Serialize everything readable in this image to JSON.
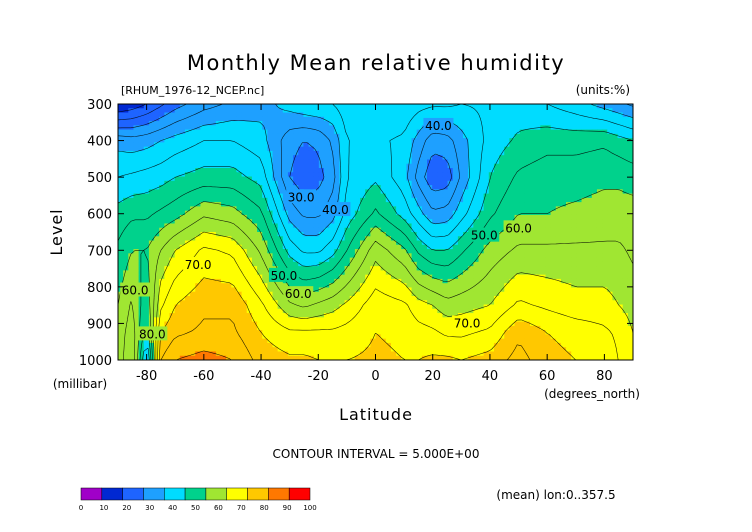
{
  "chart_data": {
    "type": "heatmap",
    "title": "Monthly Mean relative humidity",
    "subtitle_left": "[RHUM_1976-12_NCEP.nc]",
    "units": "(units:%)",
    "xlabel": "Latitude",
    "ylabel": "Level",
    "x_unit_label": "(degrees_north)",
    "y_unit_label": "(millibar)",
    "xlim": [
      -90,
      90
    ],
    "ylim": [
      1000,
      300
    ],
    "x_ticks": [
      -80,
      -60,
      -40,
      -20,
      0,
      20,
      40,
      60,
      80
    ],
    "x_tick_labels": [
      "-80",
      "-60",
      "-40",
      "-20",
      "0",
      "20",
      "40",
      "60",
      "80"
    ],
    "y_ticks": [
      300,
      400,
      500,
      600,
      700,
      800,
      900,
      1000
    ],
    "y_tick_labels": [
      "300",
      "400",
      "500",
      "600",
      "700",
      "800",
      "900",
      "1000"
    ],
    "contour_interval_text": "CONTOUR INTERVAL = 5.000E+00",
    "footer_note": "(mean) lon:0..357.5",
    "contour_labels": [
      {
        "text": "40.0",
        "lat": 22,
        "level": 360
      },
      {
        "text": "30.0",
        "lat": -26,
        "level": 555
      },
      {
        "text": "40.0",
        "lat": -14,
        "level": 590
      },
      {
        "text": "50.0",
        "lat": 38,
        "level": 660
      },
      {
        "text": "60.0",
        "lat": 50,
        "level": 640
      },
      {
        "text": "70.0",
        "lat": -62,
        "level": 740
      },
      {
        "text": "60.0",
        "lat": -84,
        "level": 810
      },
      {
        "text": "50.0",
        "lat": -32,
        "level": 770
      },
      {
        "text": "60.0",
        "lat": -27,
        "level": 820
      },
      {
        "text": "80.0",
        "lat": -78,
        "level": 930
      },
      {
        "text": "70.0",
        "lat": 32,
        "level": 900
      }
    ],
    "colorbar": {
      "levels": [
        0,
        10,
        20,
        30,
        40,
        50,
        60,
        70,
        80,
        90,
        100
      ],
      "colors": [
        "#a000c8",
        "#0028d2",
        "#1e64ff",
        "#1ea0ff",
        "#00dcff",
        "#00d28c",
        "#a0e632",
        "#ffff00",
        "#ffc800",
        "#ff7800",
        "#ff0000"
      ]
    },
    "lat": [
      -90,
      -85,
      -80,
      -75,
      -70,
      -60,
      -50,
      -40,
      -30,
      -25,
      -20,
      -15,
      -10,
      0,
      10,
      15,
      20,
      25,
      30,
      40,
      50,
      60,
      70,
      80,
      85,
      90
    ],
    "levels": [
      1000,
      925,
      850,
      700,
      600,
      500,
      400,
      300
    ],
    "values": [
      [
        62,
        70,
        42,
        85,
        90,
        92,
        90,
        83,
        81,
        81,
        80,
        80,
        80,
        81,
        80,
        80,
        81,
        81,
        80,
        82,
        87,
        82,
        80,
        78,
        75,
        70
      ],
      [
        62,
        68,
        52,
        80,
        84,
        86,
        86,
        80,
        76,
        76,
        76,
        76,
        77,
        80,
        79,
        77,
        76,
        74,
        74,
        76,
        84,
        80,
        78,
        76,
        74,
        70
      ],
      [
        60,
        66,
        56,
        74,
        80,
        84,
        84,
        76,
        66,
        64,
        66,
        68,
        71,
        78,
        76,
        72,
        70,
        67,
        68,
        70,
        76,
        74,
        72,
        72,
        70,
        68
      ],
      [
        56,
        60,
        60,
        65,
        70,
        76,
        74,
        64,
        48,
        44,
        44,
        48,
        55,
        68,
        61,
        54,
        50,
        50,
        54,
        62,
        66,
        66,
        66,
        66,
        66,
        64
      ],
      [
        52,
        54,
        54,
        56,
        58,
        64,
        62,
        56,
        38,
        34,
        34,
        38,
        47,
        56,
        48,
        42,
        36,
        37,
        43,
        54,
        60,
        60,
        61,
        62,
        62,
        62
      ],
      [
        45,
        46,
        47,
        48,
        50,
        52,
        52,
        48,
        30,
        26,
        28,
        33,
        45,
        49,
        42,
        33,
        26,
        27,
        36,
        50,
        56,
        58,
        58,
        59,
        59,
        58
      ],
      [
        38,
        37,
        38,
        40,
        42,
        45,
        45,
        42,
        32,
        30,
        31,
        36,
        45,
        46,
        44,
        38,
        32,
        33,
        38,
        47,
        51,
        53,
        53,
        54,
        52,
        50
      ],
      [
        15,
        17,
        20,
        24,
        28,
        33,
        36,
        38,
        42,
        44,
        45,
        45,
        48,
        50,
        49,
        47,
        46,
        46,
        45,
        46,
        47,
        45,
        42,
        38,
        36,
        34
      ]
    ]
  }
}
